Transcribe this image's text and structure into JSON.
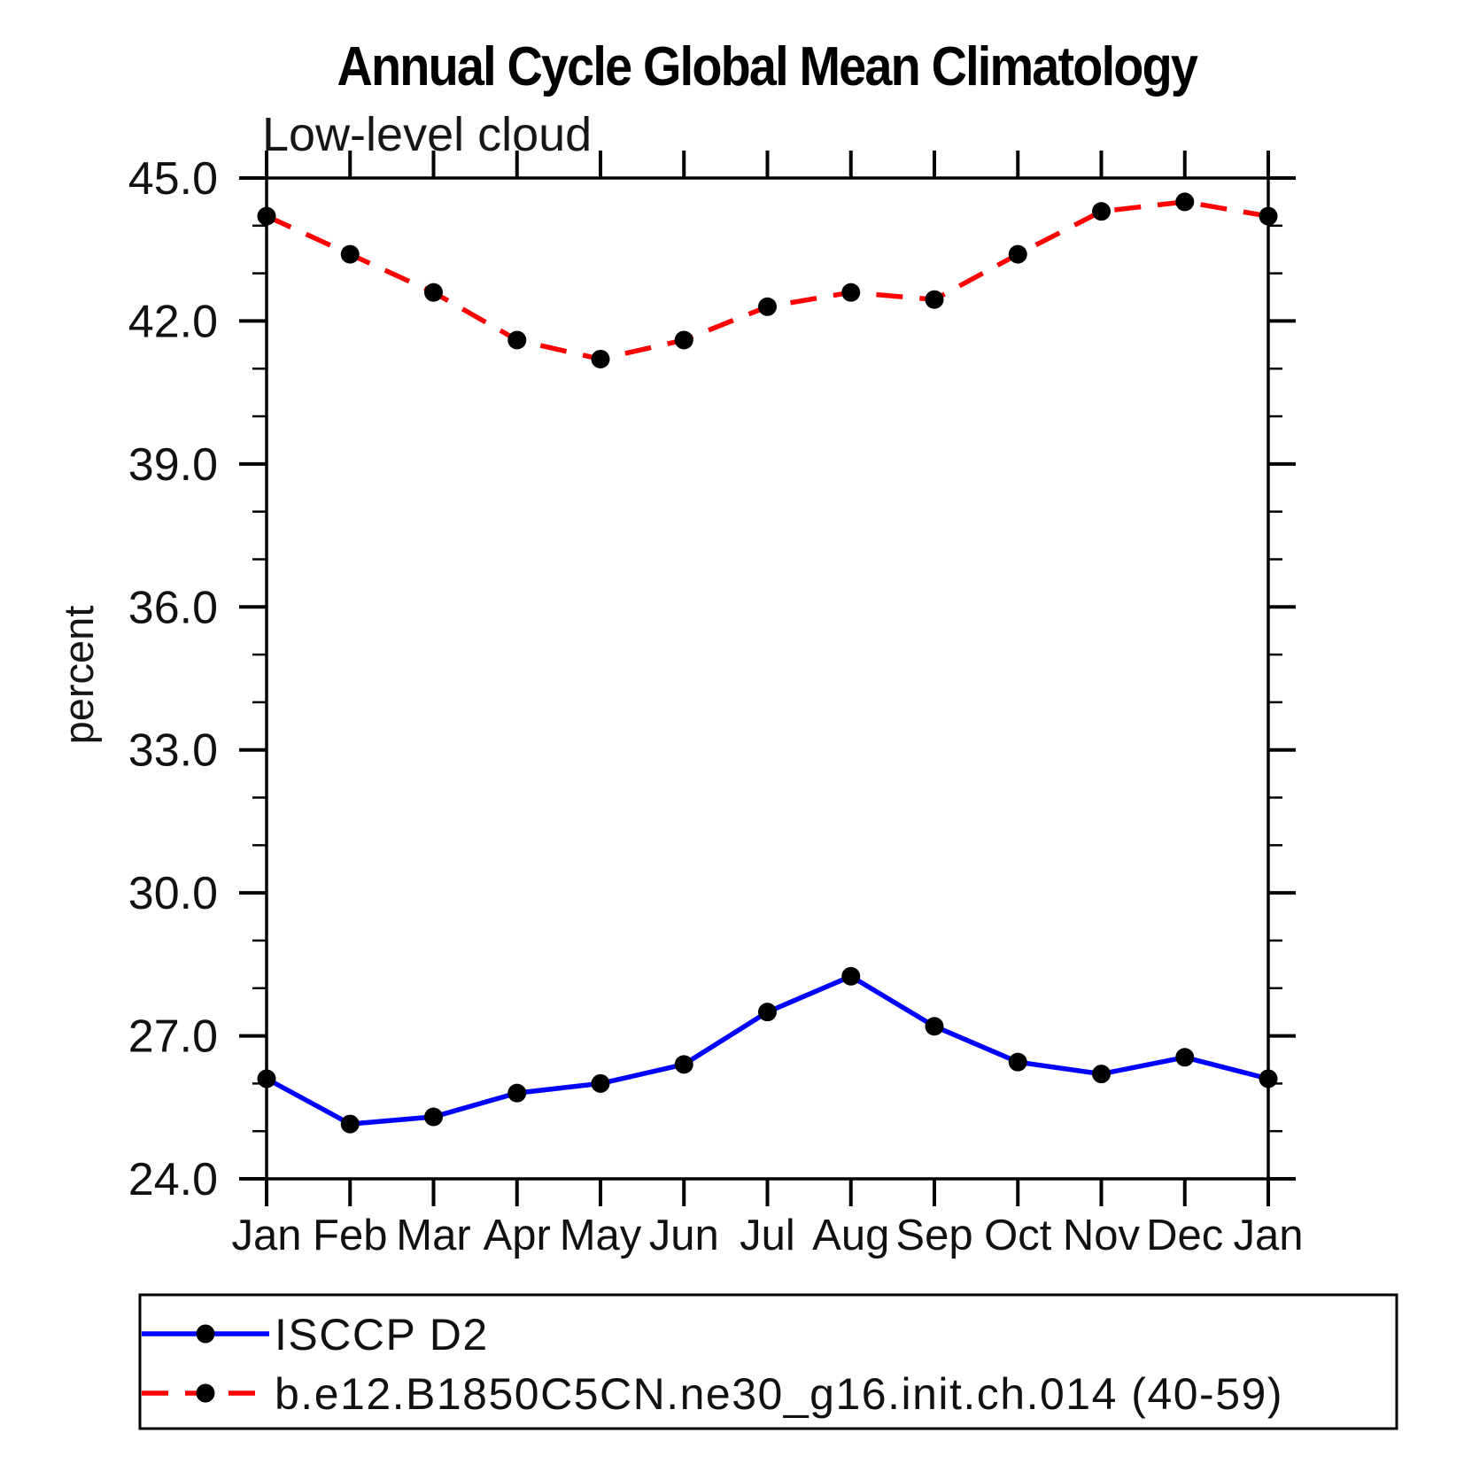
{
  "chart_data": {
    "type": "line",
    "title": "Annual Cycle Global Mean Climatology",
    "subtitle": "Low-level cloud",
    "ylabel": "percent",
    "xlabel": "",
    "categories": [
      "Jan",
      "Feb",
      "Mar",
      "Apr",
      "May",
      "Jun",
      "Jul",
      "Aug",
      "Sep",
      "Oct",
      "Nov",
      "Dec",
      "Jan"
    ],
    "series": [
      {
        "name": "ISCCP D2",
        "color": "#0000ff",
        "line_style": "solid",
        "marker": "circle",
        "marker_color": "#000000",
        "values": [
          26.1,
          25.15,
          25.3,
          25.8,
          26.0,
          26.4,
          27.5,
          28.25,
          27.2,
          26.45,
          26.2,
          26.55,
          26.1
        ]
      },
      {
        "name": "b.e12.B1850C5CN.ne30_g16.init.ch.014 (40-59)",
        "color": "#ff0000",
        "line_style": "dashed",
        "marker": "circle",
        "marker_color": "#000000",
        "values": [
          44.2,
          43.4,
          42.6,
          41.6,
          41.2,
          41.6,
          42.3,
          42.6,
          42.45,
          43.4,
          44.3,
          44.5,
          44.2
        ]
      }
    ],
    "ylim": [
      24.0,
      45.0
    ],
    "ytick_major_values": [
      24,
      27,
      30,
      33,
      36,
      39,
      42,
      45
    ],
    "ytick_labels": [
      "24.0",
      "27.0",
      "30.0",
      "33.0",
      "36.0",
      "39.0",
      "42.0",
      "45.0"
    ],
    "ytick_minor_step": 1,
    "grid": false,
    "legend_position": "bottom-left"
  }
}
